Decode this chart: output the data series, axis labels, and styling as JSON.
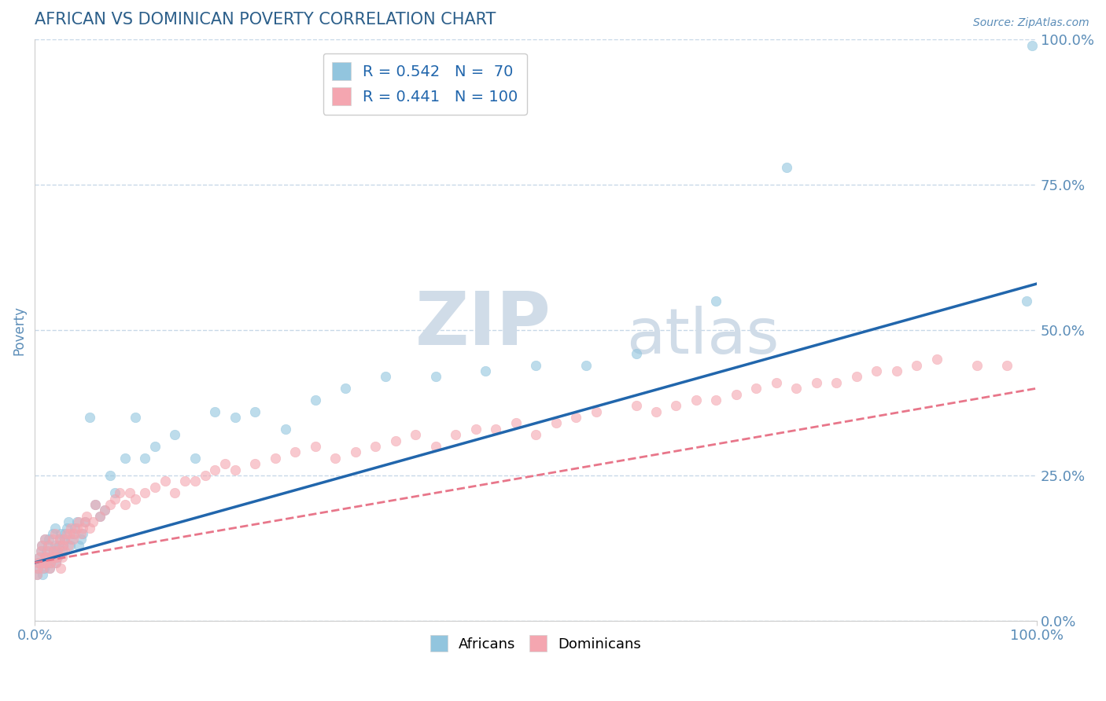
{
  "title": "AFRICAN VS DOMINICAN POVERTY CORRELATION CHART",
  "source_text": "Source: ZipAtlas.com",
  "ylabel": "Poverty",
  "watermark_zip": "ZIP",
  "watermark_atlas": "atlas",
  "africans_label": "Africans",
  "dominicans_label": "Dominicans",
  "african_color": "#92c5de",
  "dominican_color": "#f4a6b0",
  "regression_african_color": "#2166ac",
  "regression_dominican_color": "#e8768a",
  "title_color": "#2c5f8a",
  "axis_color": "#5b8db8",
  "grid_color": "#c8d8e8",
  "watermark_color": "#d0dce8",
  "background_color": "#ffffff",
  "xlim": [
    0,
    1
  ],
  "ylim": [
    0,
    1
  ],
  "xticks": [
    0.0,
    1.0
  ],
  "yticks": [
    0.0,
    0.25,
    0.5,
    0.75,
    1.0
  ],
  "xticklabels": [
    "0.0%",
    "100.0%"
  ],
  "yticklabels": [
    "0.0%",
    "25.0%",
    "50.0%",
    "75.0%",
    "100.0%"
  ],
  "african_R": 0.542,
  "african_N": 70,
  "dominican_R": 0.441,
  "dominican_N": 100,
  "african_line": {
    "x0": 0.0,
    "y0": 0.1,
    "x1": 1.0,
    "y1": 0.58
  },
  "dominican_line": {
    "x0": 0.0,
    "y0": 0.1,
    "x1": 1.0,
    "y1": 0.4
  },
  "african_scatter_x": [
    0.002,
    0.003,
    0.004,
    0.005,
    0.006,
    0.007,
    0.008,
    0.009,
    0.01,
    0.01,
    0.011,
    0.012,
    0.013,
    0.014,
    0.015,
    0.016,
    0.017,
    0.018,
    0.019,
    0.02,
    0.02,
    0.021,
    0.022,
    0.023,
    0.024,
    0.025,
    0.026,
    0.027,
    0.028,
    0.03,
    0.03,
    0.032,
    0.034,
    0.035,
    0.036,
    0.038,
    0.04,
    0.042,
    0.044,
    0.046,
    0.048,
    0.05,
    0.055,
    0.06,
    0.065,
    0.07,
    0.075,
    0.08,
    0.09,
    0.1,
    0.11,
    0.12,
    0.14,
    0.16,
    0.18,
    0.2,
    0.22,
    0.25,
    0.28,
    0.31,
    0.35,
    0.4,
    0.45,
    0.5,
    0.55,
    0.6,
    0.68,
    0.75,
    0.99,
    0.995
  ],
  "african_scatter_y": [
    0.08,
    0.09,
    0.1,
    0.11,
    0.12,
    0.13,
    0.08,
    0.09,
    0.1,
    0.14,
    0.11,
    0.12,
    0.13,
    0.14,
    0.09,
    0.1,
    0.11,
    0.15,
    0.12,
    0.13,
    0.16,
    0.1,
    0.12,
    0.11,
    0.13,
    0.14,
    0.15,
    0.12,
    0.13,
    0.14,
    0.15,
    0.16,
    0.17,
    0.13,
    0.14,
    0.15,
    0.16,
    0.17,
    0.13,
    0.14,
    0.15,
    0.17,
    0.35,
    0.2,
    0.18,
    0.19,
    0.25,
    0.22,
    0.28,
    0.35,
    0.28,
    0.3,
    0.32,
    0.28,
    0.36,
    0.35,
    0.36,
    0.33,
    0.38,
    0.4,
    0.42,
    0.42,
    0.43,
    0.44,
    0.44,
    0.46,
    0.55,
    0.78,
    0.55,
    0.99
  ],
  "dominican_scatter_x": [
    0.002,
    0.003,
    0.004,
    0.005,
    0.006,
    0.007,
    0.008,
    0.009,
    0.01,
    0.01,
    0.011,
    0.012,
    0.013,
    0.014,
    0.015,
    0.016,
    0.017,
    0.018,
    0.019,
    0.02,
    0.02,
    0.021,
    0.022,
    0.023,
    0.024,
    0.025,
    0.026,
    0.027,
    0.028,
    0.03,
    0.03,
    0.032,
    0.034,
    0.035,
    0.036,
    0.038,
    0.04,
    0.042,
    0.044,
    0.046,
    0.048,
    0.05,
    0.052,
    0.055,
    0.058,
    0.06,
    0.065,
    0.07,
    0.075,
    0.08,
    0.085,
    0.09,
    0.095,
    0.1,
    0.11,
    0.12,
    0.13,
    0.14,
    0.15,
    0.16,
    0.17,
    0.18,
    0.19,
    0.2,
    0.22,
    0.24,
    0.26,
    0.28,
    0.3,
    0.32,
    0.34,
    0.36,
    0.38,
    0.4,
    0.42,
    0.44,
    0.46,
    0.48,
    0.5,
    0.52,
    0.54,
    0.56,
    0.6,
    0.62,
    0.64,
    0.66,
    0.68,
    0.7,
    0.72,
    0.74,
    0.76,
    0.78,
    0.8,
    0.82,
    0.84,
    0.86,
    0.88,
    0.9,
    0.94,
    0.97
  ],
  "dominican_scatter_y": [
    0.08,
    0.09,
    0.1,
    0.11,
    0.12,
    0.13,
    0.09,
    0.1,
    0.11,
    0.14,
    0.1,
    0.11,
    0.12,
    0.13,
    0.09,
    0.1,
    0.11,
    0.14,
    0.12,
    0.11,
    0.15,
    0.1,
    0.11,
    0.12,
    0.13,
    0.14,
    0.09,
    0.11,
    0.13,
    0.12,
    0.14,
    0.15,
    0.13,
    0.15,
    0.16,
    0.14,
    0.15,
    0.16,
    0.17,
    0.15,
    0.16,
    0.17,
    0.18,
    0.16,
    0.17,
    0.2,
    0.18,
    0.19,
    0.2,
    0.21,
    0.22,
    0.2,
    0.22,
    0.21,
    0.22,
    0.23,
    0.24,
    0.22,
    0.24,
    0.24,
    0.25,
    0.26,
    0.27,
    0.26,
    0.27,
    0.28,
    0.29,
    0.3,
    0.28,
    0.29,
    0.3,
    0.31,
    0.32,
    0.3,
    0.32,
    0.33,
    0.33,
    0.34,
    0.32,
    0.34,
    0.35,
    0.36,
    0.37,
    0.36,
    0.37,
    0.38,
    0.38,
    0.39,
    0.4,
    0.41,
    0.4,
    0.41,
    0.41,
    0.42,
    0.43,
    0.43,
    0.44,
    0.45,
    0.44,
    0.44
  ]
}
